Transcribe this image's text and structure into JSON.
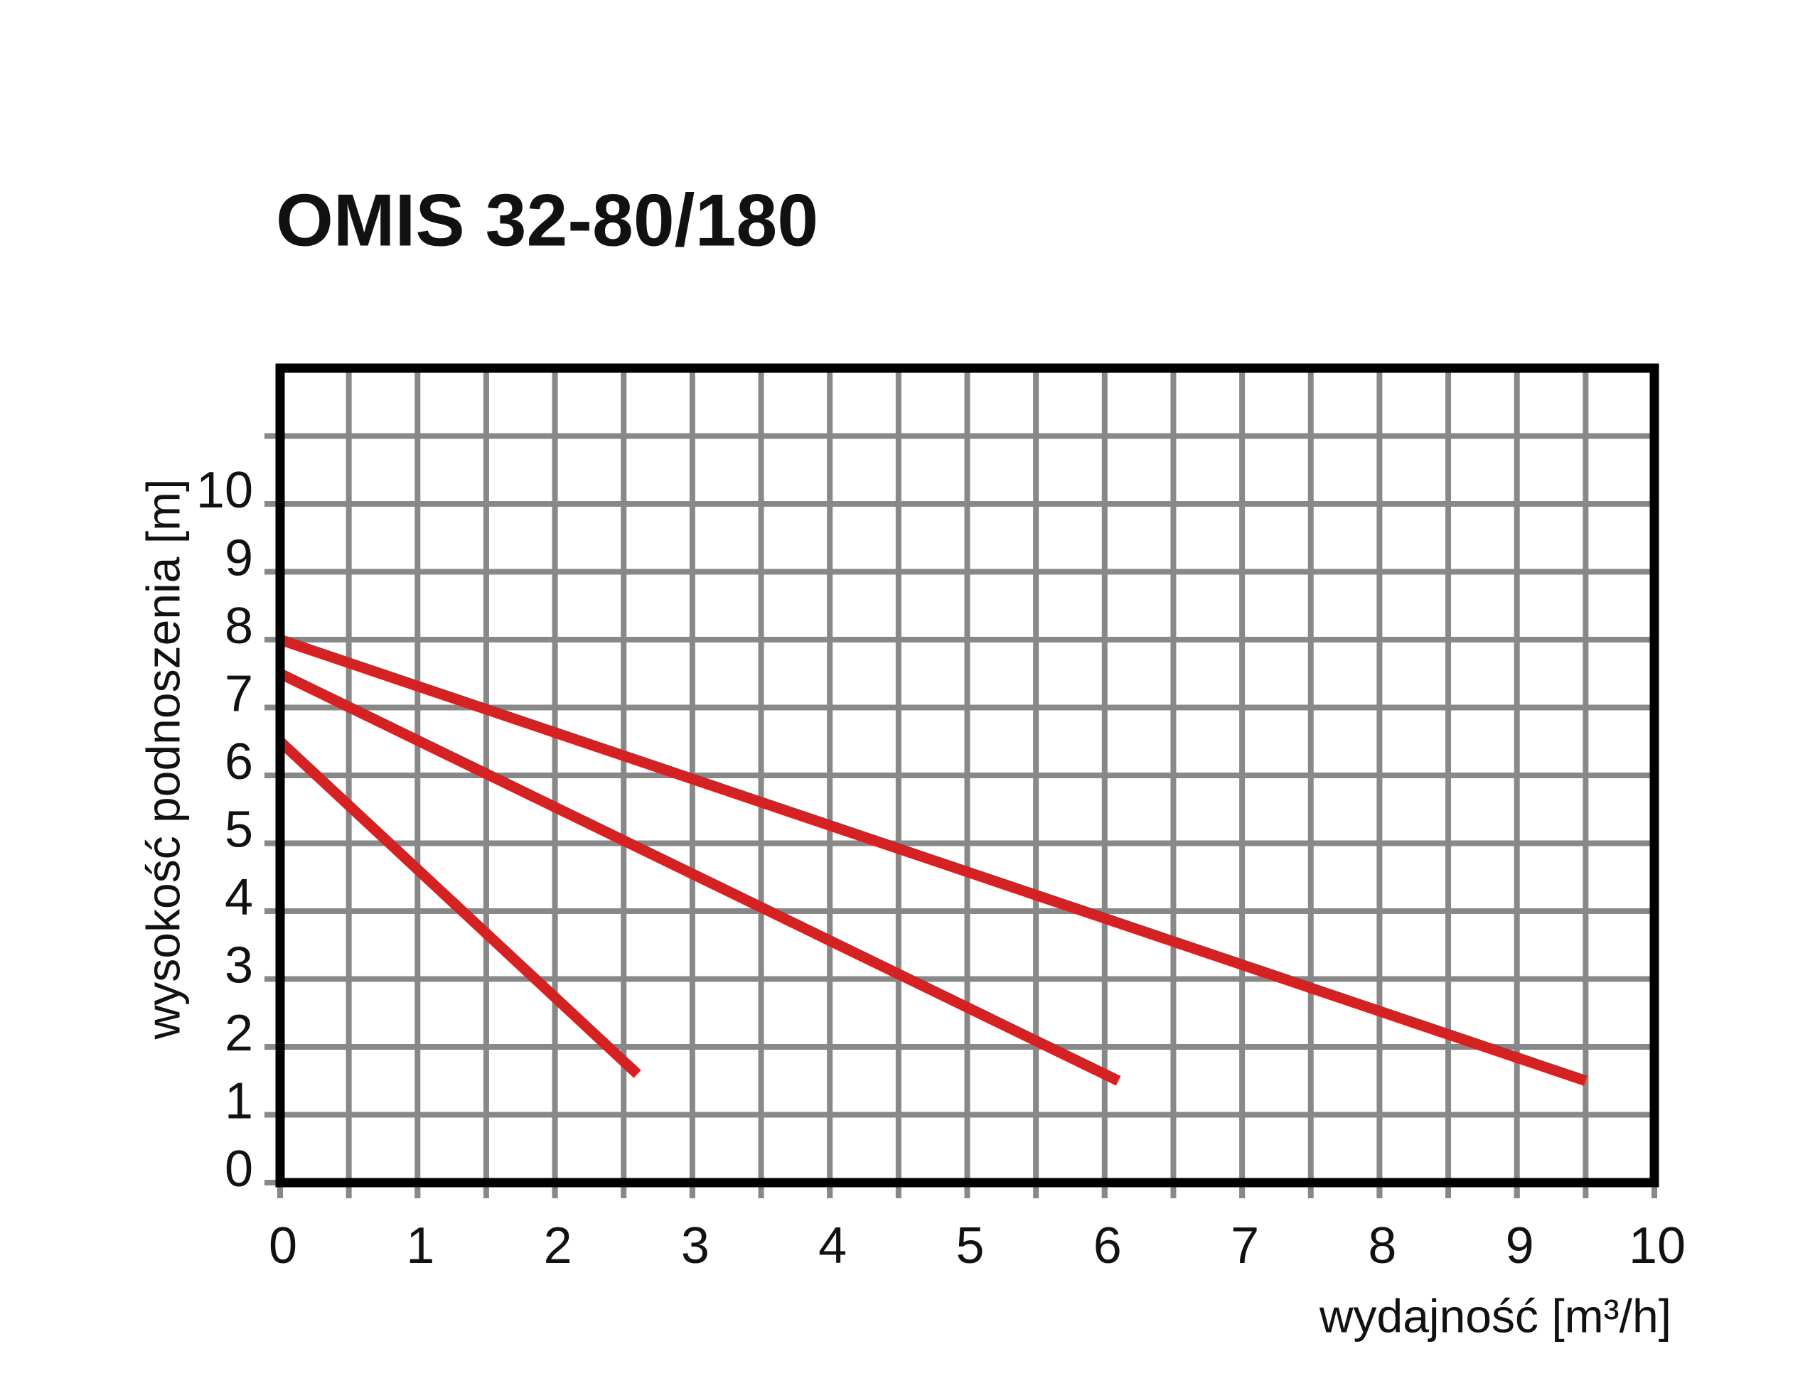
{
  "chart_data": {
    "type": "line",
    "title": "OMIS 32-80/180",
    "x_label": "wydajność [m³/h]",
    "y_label": "wysokość podnoszenia [m]",
    "xlim": [
      0,
      10
    ],
    "ylim": [
      0,
      12
    ],
    "xticks": [
      0,
      1,
      2,
      3,
      4,
      5,
      6,
      7,
      8,
      9,
      10
    ],
    "yticks": [
      0,
      1,
      2,
      3,
      4,
      5,
      6,
      7,
      8,
      9,
      10
    ],
    "grid": true,
    "xgrid_step": 0.5,
    "ygrid_step": 1,
    "series": [
      {
        "color": "#d42222",
        "x": [
          0,
          9.5
        ],
        "values": [
          8,
          1.5
        ]
      },
      {
        "color": "#d42222",
        "x": [
          0,
          6.1
        ],
        "values": [
          7.5,
          1.5
        ]
      },
      {
        "color": "#d42222",
        "x": [
          0,
          2.6
        ],
        "values": [
          6.5,
          1.6
        ]
      }
    ]
  }
}
